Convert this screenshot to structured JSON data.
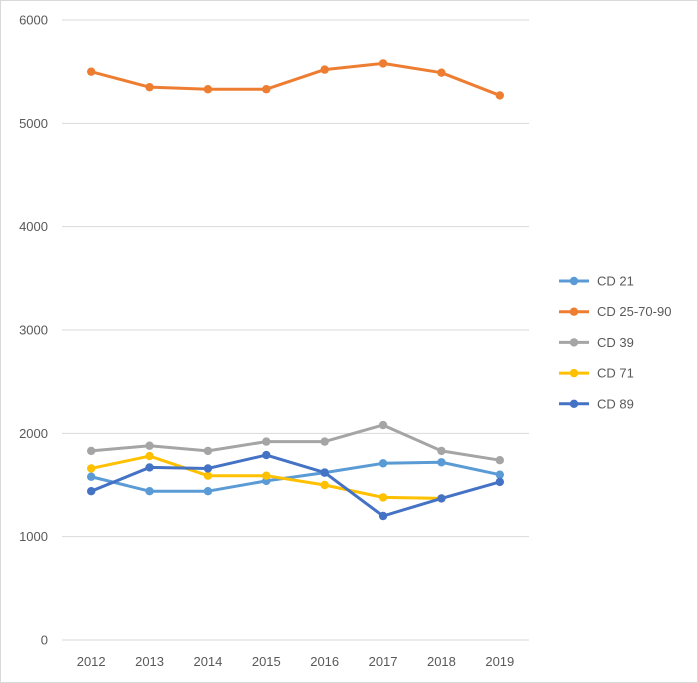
{
  "chart_data": {
    "type": "line",
    "title": "",
    "xlabel": "",
    "ylabel": "",
    "categories": [
      "2012",
      "2013",
      "2014",
      "2015",
      "2016",
      "2017",
      "2018",
      "2019"
    ],
    "ylim": [
      0,
      6000
    ],
    "yticks": [
      0,
      1000,
      2000,
      3000,
      4000,
      5000,
      6000
    ],
    "grid": "horizontal",
    "legend_position": "right",
    "series": [
      {
        "name": "CD 21",
        "color": "#5b9bd5",
        "values": [
          1580,
          1440,
          1440,
          1540,
          1620,
          1710,
          1720,
          1600
        ]
      },
      {
        "name": "CD 25-70-90",
        "color": "#ed7d31",
        "values": [
          5500,
          5350,
          5330,
          5330,
          5520,
          5580,
          5490,
          5270
        ]
      },
      {
        "name": "CD 39",
        "color": "#a5a5a5",
        "values": [
          1830,
          1880,
          1830,
          1920,
          1920,
          2080,
          1830,
          1740
        ]
      },
      {
        "name": "CD 71",
        "color": "#ffc000",
        "values": [
          1660,
          1780,
          1590,
          1590,
          1500,
          1380,
          1370,
          null
        ]
      },
      {
        "name": "CD 89",
        "color": "#4472c4",
        "values": [
          1440,
          1670,
          1660,
          1790,
          1620,
          1200,
          1370,
          1530
        ]
      }
    ]
  }
}
